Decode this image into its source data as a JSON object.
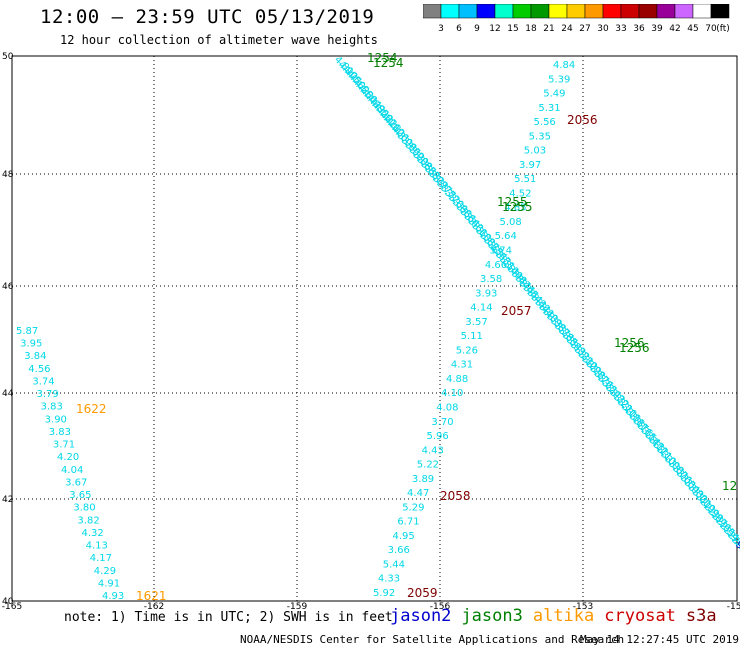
{
  "header": {
    "title": "12:00 – 23:59 UTC 05/13/2019",
    "subtitle": "12 hour collection of altimeter wave heights"
  },
  "colorbar": {
    "colors": [
      "#808080",
      "#00ffff",
      "#00bfff",
      "#0000ff",
      "#00ffcc",
      "#00cc00",
      "#009900",
      "#ffff00",
      "#ffcc00",
      "#ff9900",
      "#ff0000",
      "#cc0000",
      "#990000",
      "#990099",
      "#cc66ff",
      "#ffffff",
      "#000000"
    ],
    "labels": [
      "3",
      "6",
      "9",
      "12",
      "15",
      "18",
      "21",
      "24",
      "27",
      "30",
      "33",
      "36",
      "39",
      "42",
      "45",
      "70"
    ],
    "unit": "(ft)"
  },
  "axes": {
    "lon_ticks": [
      "-165",
      "-162",
      "-159",
      "-156",
      "-153",
      "-150"
    ],
    "lat_ticks": [
      "50",
      "48",
      "46",
      "44",
      "42",
      "40"
    ]
  },
  "map_labels": {
    "track_times": [
      {
        "text": "1254",
        "color": "#008000"
      },
      {
        "text": "1254",
        "color": "#008000"
      },
      {
        "text": "2056",
        "color": "#800000"
      },
      {
        "text": "1255",
        "color": "#008000"
      },
      {
        "text": "1255",
        "color": "#008000"
      },
      {
        "text": "2057",
        "color": "#800000"
      },
      {
        "text": "1256",
        "color": "#008000"
      },
      {
        "text": "1256",
        "color": "#008000"
      },
      {
        "text": "1622",
        "color": "#ff9900"
      },
      {
        "text": "2058",
        "color": "#800000"
      },
      {
        "text": "1621",
        "color": "#ff9900"
      },
      {
        "text": "2059",
        "color": "#800000"
      },
      {
        "text": "12",
        "color": "#008000"
      }
    ],
    "left_track": [
      "5.87",
      "3.95",
      "3.84",
      "4.56",
      "3.74",
      "3.79",
      "3.83",
      "3.90",
      "3.83",
      "3.71",
      "4.20",
      "4.04",
      "3.67",
      "3.65",
      "3.80",
      "3.82",
      "4.32",
      "4.13",
      "4.17",
      "4.29",
      "4.91",
      "4.93"
    ],
    "middle_track": [
      "4.84",
      "5.39",
      "5.49",
      "5.31",
      "5.56",
      "5.35",
      "5.03",
      "3.97",
      "5.51",
      "4.52",
      "4.85",
      "5.08",
      "5.64",
      "5.74",
      "4.66",
      "3.58",
      "3.93",
      "4.14",
      "3.57",
      "5.11",
      "5.26",
      "4.31",
      "4.88",
      "4.10",
      "4.08",
      "3.70",
      "5.96",
      "4.43",
      "5.22",
      "3.89",
      "4.47",
      "5.29",
      "6.71",
      "4.95",
      "3.66",
      "5.44",
      "4.33",
      "5.92"
    ],
    "diag_track": [
      "4.81",
      "4.90",
      "4.75",
      "4.70",
      "4.62",
      "4.58",
      "4.50",
      "4.44",
      "4.39",
      "4.35",
      "4.28",
      "4.22",
      "4.18",
      "4.12",
      "4.06",
      "4.00",
      "3.98",
      "3.95",
      "3.92",
      "3.90",
      "3.88",
      "3.85",
      "3.83",
      "3.80",
      "3.79",
      "3.77",
      "3.75",
      "3.72",
      "3.70",
      "3.69",
      "3.68",
      "3.66",
      "3.64",
      "3.63",
      "3.61",
      "3.60",
      "3.58",
      "3.57",
      "3.55",
      "3.54",
      "3.53",
      "3.51",
      "3.50",
      "3.49",
      "3.48",
      "3.47",
      "3.46",
      "3.45",
      "3.44",
      "3.43",
      "3.42",
      "3.41",
      "3.40",
      "3.39",
      "3.38",
      "3.37",
      "3.36",
      "3.35",
      "3.34",
      "3.33",
      "3.32",
      "3.31",
      "3.30",
      "3.29",
      "3.28",
      "3.27",
      "3.26",
      "3.25",
      "3.24",
      "3.23",
      "3.22",
      "3.21",
      "3.20",
      "3.19",
      "3.18",
      "3.17",
      "3.16",
      "3.15",
      "3.14",
      "3.13",
      "3.12",
      "3.11",
      "3.10",
      "3.09",
      "3.08",
      "3.07",
      "3.06",
      "3.05",
      "3.04",
      "3.03",
      "3.02",
      "3.01",
      "3.00",
      "2.99",
      "2.98",
      "2.97",
      "2.96",
      "2.95",
      "2.94",
      "2.93",
      "2.92",
      "2.91",
      "9.0"
    ]
  },
  "footer": {
    "note": "note: 1) Time is in UTC; 2) SWH is in feet",
    "credit": "NOAA/NESDIS Center for Satellite Applications and Research",
    "timestamp": "May 14 12:27:45 UTC 2019",
    "legend": [
      {
        "name": "jason2",
        "color": "#0000cc"
      },
      {
        "name": "jason3",
        "color": "#008000"
      },
      {
        "name": "altika",
        "color": "#ff9900"
      },
      {
        "name": "cryosat",
        "color": "#cc0000"
      },
      {
        "name": "s3a",
        "color": "#800000"
      }
    ]
  }
}
